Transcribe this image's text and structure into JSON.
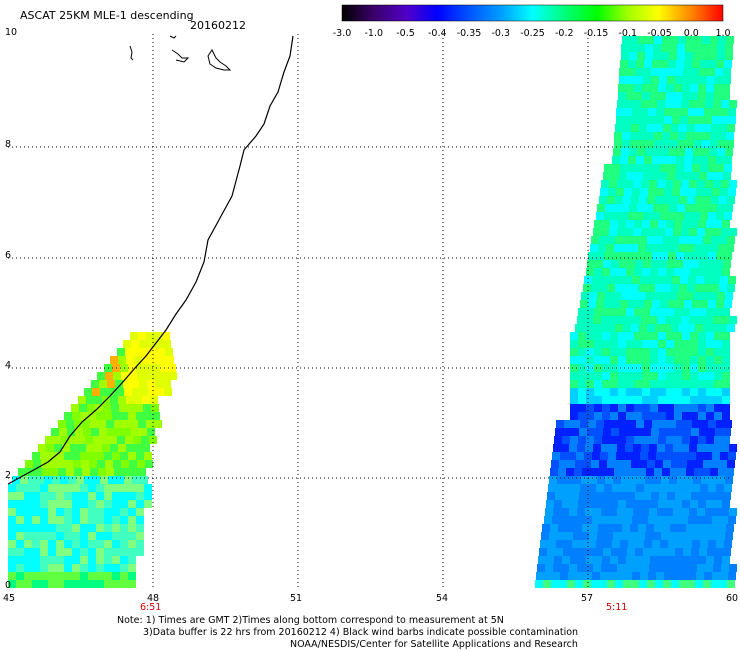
{
  "header": {
    "title": "ASCAT 25KM MLE-1 descending",
    "date": "20160212"
  },
  "colorbar": {
    "labels": [
      "-3.0",
      "-1.0",
      "-0.5",
      "-0.4",
      "-0.35",
      "-0.3",
      "-0.25",
      "-0.2",
      "-0.15",
      "-0.1",
      "-0.05",
      "0.0",
      "1.0"
    ],
    "colors": [
      "#000000",
      "#3a0066",
      "#5000c8",
      "#0000ff",
      "#0050ff",
      "#00a0ff",
      "#00ffff",
      "#00ff80",
      "#00ff00",
      "#a0ff00",
      "#ffff00",
      "#ff8000",
      "#ff0000"
    ]
  },
  "axes": {
    "x_ticks": [
      "45",
      "48",
      "51",
      "54",
      "57",
      "60"
    ],
    "y_ticks": [
      "0",
      "2",
      "4",
      "6",
      "8",
      "10"
    ],
    "x_range": [
      45,
      60
    ],
    "y_range": [
      0,
      10
    ],
    "grid": true
  },
  "pass_times": [
    "6:51",
    "5:11"
  ],
  "notes": [
    "Note: 1) Times are GMT 2)Times along bottom correspond to measurement at 5N",
    "3)Data buffer is 22 hrs from 20160212 4) Black wind barbs indicate possible contamination",
    "NOAA/NESDIS/Center for Satellite Applications and Research"
  ]
}
